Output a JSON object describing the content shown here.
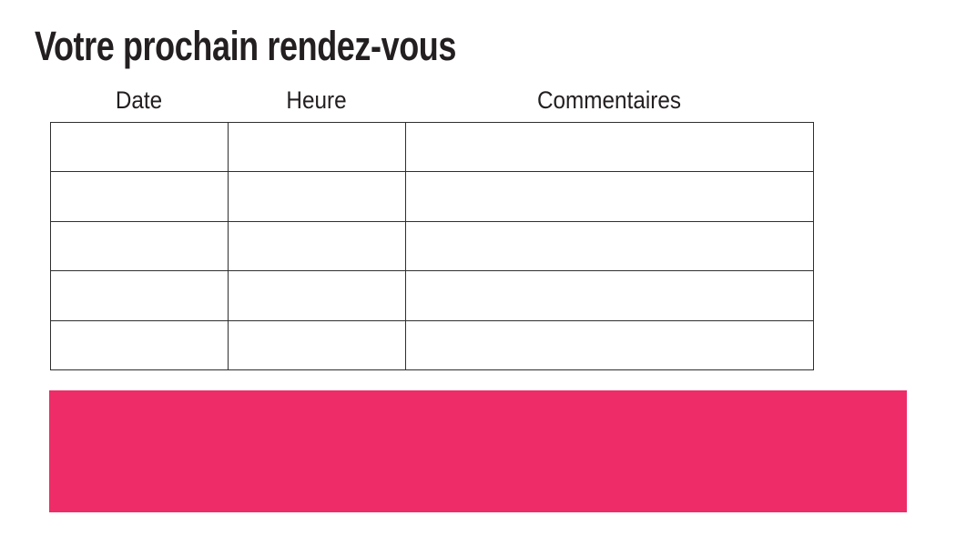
{
  "page": {
    "title": "Votre prochain rendez-vous"
  },
  "appointments_table": {
    "columns": [
      {
        "label": "Date"
      },
      {
        "label": "Heure"
      },
      {
        "label": "Commentaires"
      }
    ],
    "rows": [
      [
        "",
        "",
        ""
      ],
      [
        "",
        "",
        ""
      ],
      [
        "",
        "",
        ""
      ],
      [
        "",
        "",
        ""
      ],
      [
        "",
        "",
        ""
      ]
    ]
  },
  "colors": {
    "accent_pink": "#ED2C68",
    "table_border": "#2f2f2f",
    "text": "#231f20"
  }
}
